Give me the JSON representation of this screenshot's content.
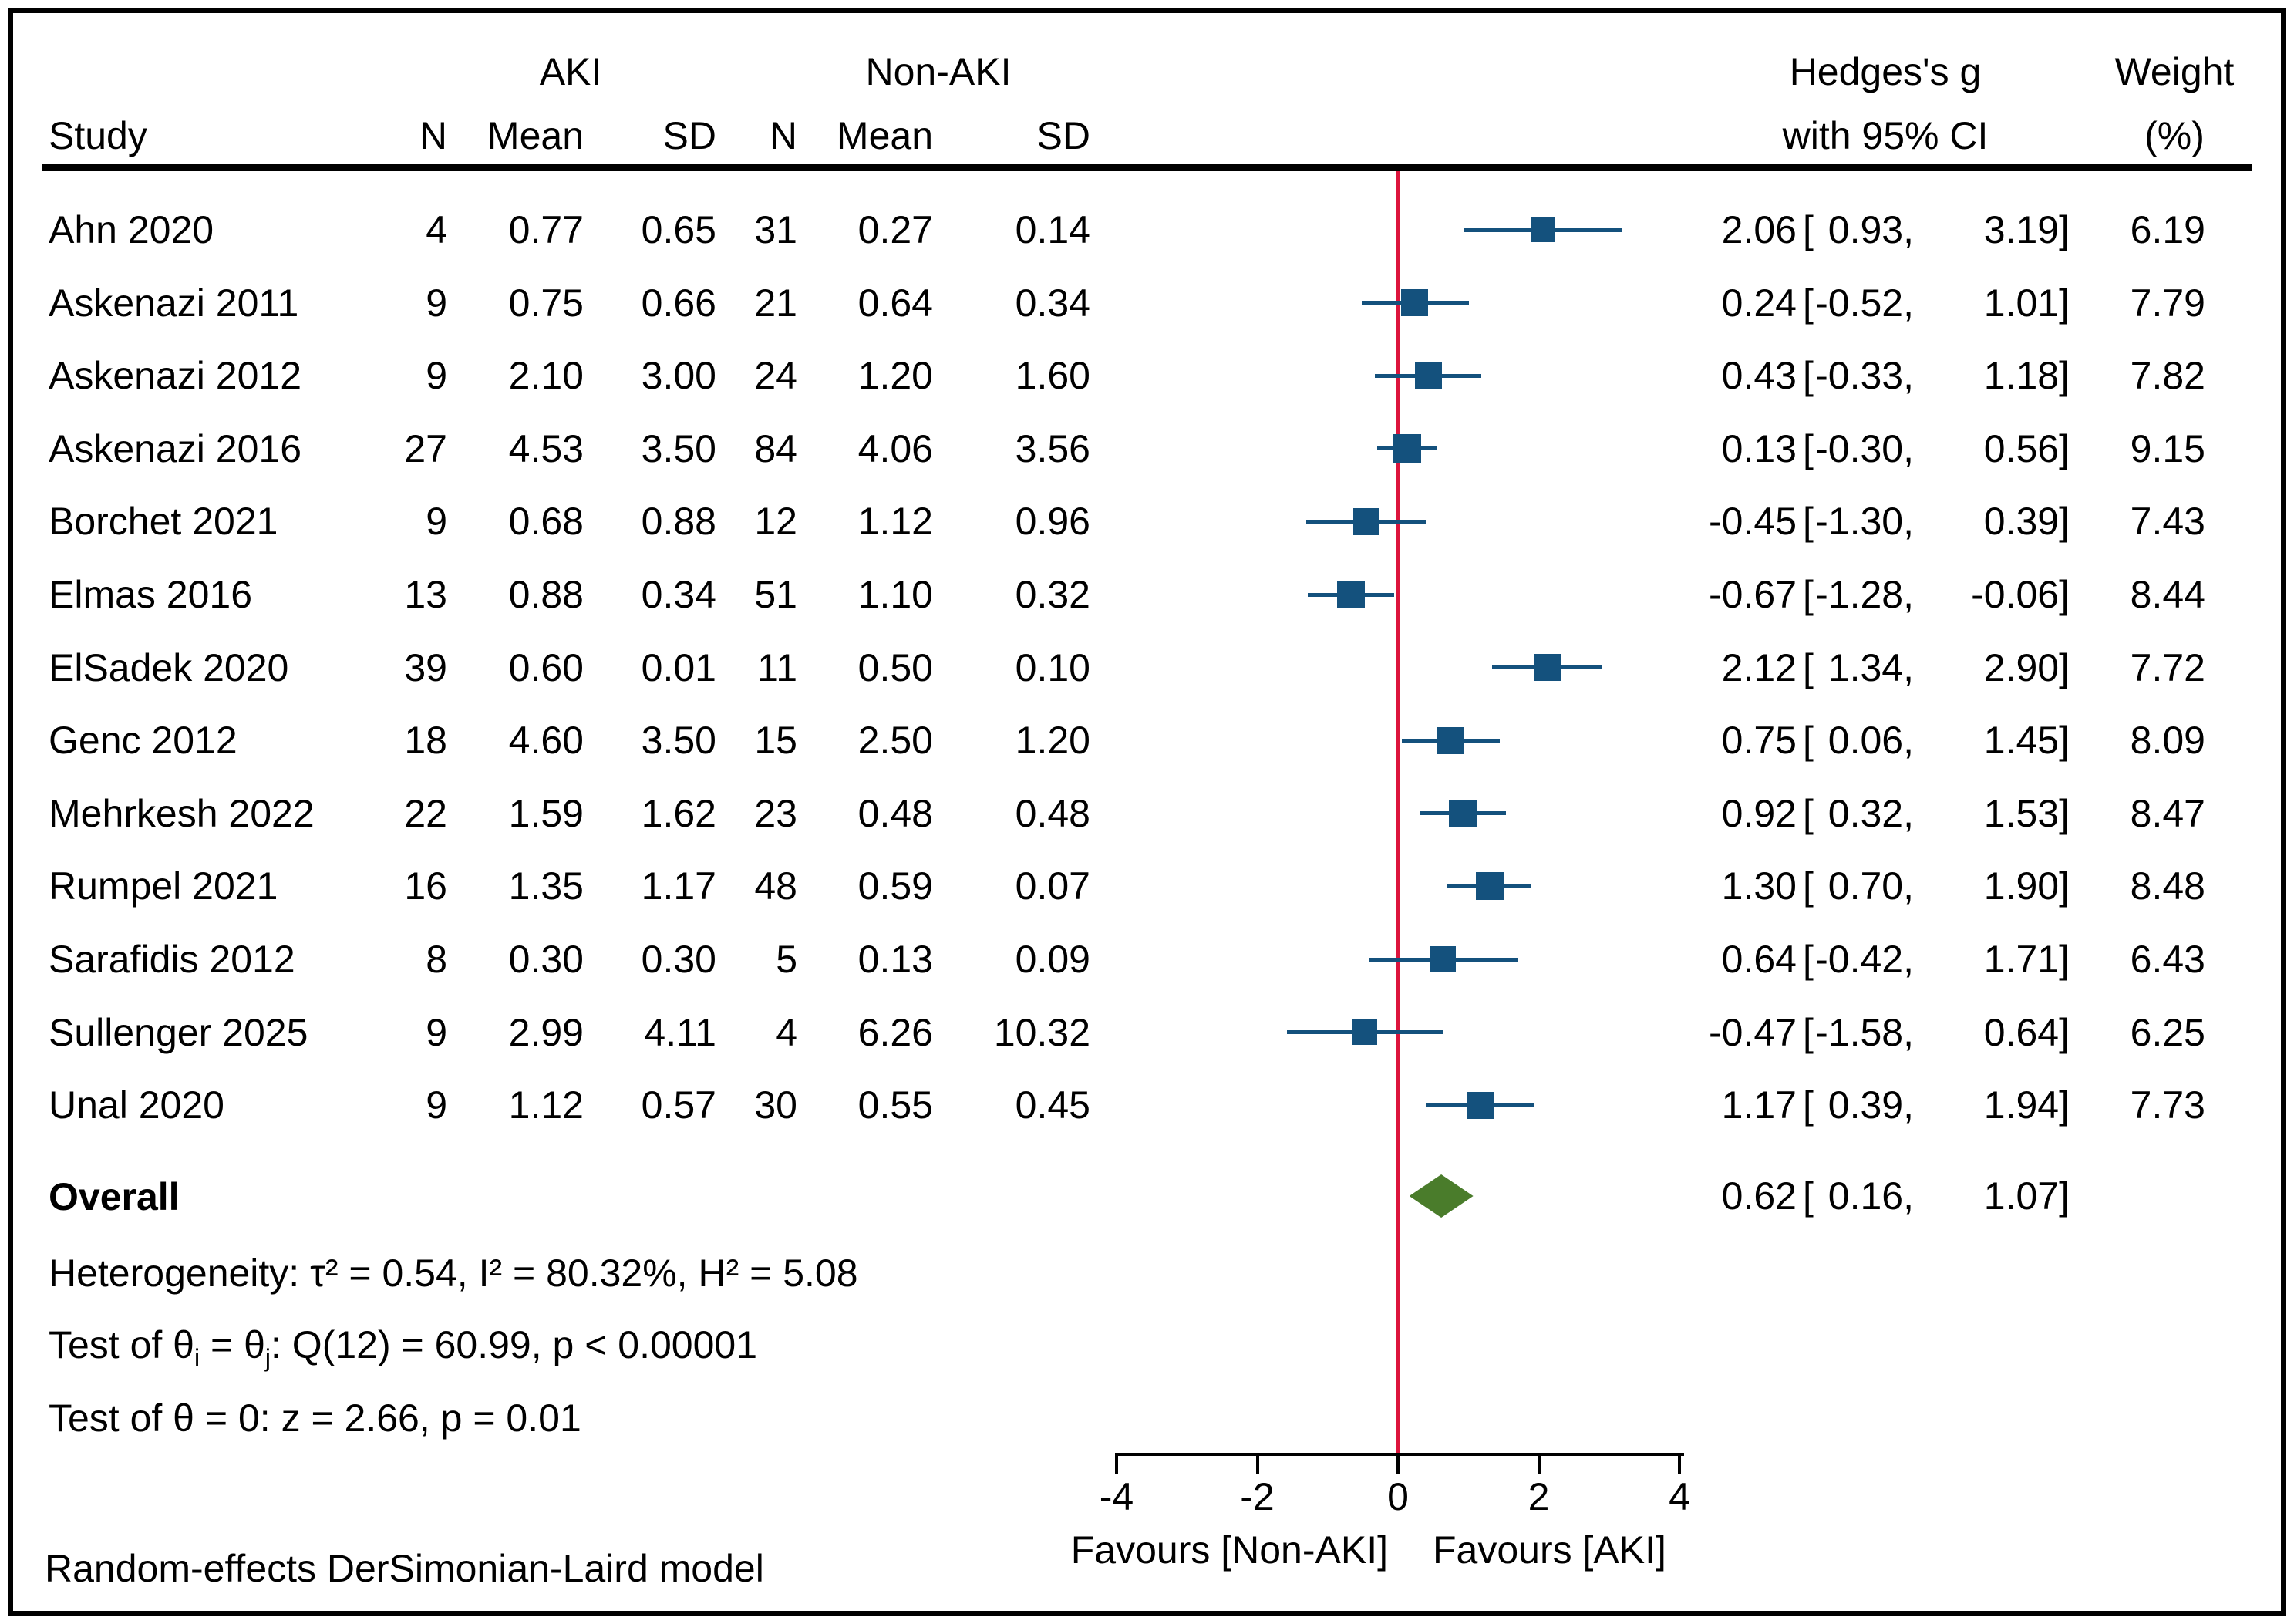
{
  "figure": {
    "headers": {
      "study": "Study",
      "aki_group": "AKI",
      "non_aki_group": "Non-AKI",
      "n1": "N",
      "mean1": "Mean",
      "sd1": "SD",
      "n2": "N",
      "mean2": "Mean",
      "sd2": "SD",
      "effect_line1": "Hedges's g",
      "effect_line2": "with 95% CI",
      "weight_line1": "Weight",
      "weight_line2": "(%)"
    },
    "stats": {
      "heterogeneity": "Heterogeneity: τ² = 0.54, I² = 80.32%, H² = 5.08",
      "homogeneity_prefix": "Test of θ",
      "homogeneity_sub_i": "i",
      "homogeneity_mid": " = θ",
      "homogeneity_sub_j": "j",
      "homogeneity_suffix": ": Q(12) = 60.99, p < 0.00001",
      "significance": "Test of θ = 0: z = 2.66, p = 0.01"
    }
  },
  "chart_data": {
    "type": "forest",
    "effect_measure": "Hedges's g",
    "ci_level": "95% CI",
    "x_axis": {
      "xlim": [
        -4,
        4
      ],
      "ticks": [
        -4,
        -2,
        0,
        2,
        4
      ],
      "ref_line_x": 0,
      "favours_left": "Favours [Non-AKI]",
      "favours_right": "Favours [AKI]"
    },
    "studies": [
      {
        "study": "Ahn 2020",
        "aki": {
          "n": "4",
          "mean": "0.77",
          "sd": "0.65"
        },
        "non_aki": {
          "n": "31",
          "mean": "0.27",
          "sd": "0.14"
        },
        "effect": {
          "est": 2.06,
          "lo": 0.93,
          "hi": 3.19
        },
        "weight": "6.19"
      },
      {
        "study": "Askenazi 2011",
        "aki": {
          "n": "9",
          "mean": "0.75",
          "sd": "0.66"
        },
        "non_aki": {
          "n": "21",
          "mean": "0.64",
          "sd": "0.34"
        },
        "effect": {
          "est": 0.24,
          "lo": -0.52,
          "hi": 1.01
        },
        "weight": "7.79"
      },
      {
        "study": "Askenazi 2012",
        "aki": {
          "n": "9",
          "mean": "2.10",
          "sd": "3.00"
        },
        "non_aki": {
          "n": "24",
          "mean": "1.20",
          "sd": "1.60"
        },
        "effect": {
          "est": 0.43,
          "lo": -0.33,
          "hi": 1.18
        },
        "weight": "7.82"
      },
      {
        "study": "Askenazi 2016",
        "aki": {
          "n": "27",
          "mean": "4.53",
          "sd": "3.50"
        },
        "non_aki": {
          "n": "84",
          "mean": "4.06",
          "sd": "3.56"
        },
        "effect": {
          "est": 0.13,
          "lo": -0.3,
          "hi": 0.56
        },
        "weight": "9.15"
      },
      {
        "study": "Borchet 2021",
        "aki": {
          "n": "9",
          "mean": "0.68",
          "sd": "0.88"
        },
        "non_aki": {
          "n": "12",
          "mean": "1.12",
          "sd": "0.96"
        },
        "effect": {
          "est": -0.45,
          "lo": -1.3,
          "hi": 0.39
        },
        "weight": "7.43"
      },
      {
        "study": "Elmas 2016",
        "aki": {
          "n": "13",
          "mean": "0.88",
          "sd": "0.34"
        },
        "non_aki": {
          "n": "51",
          "mean": "1.10",
          "sd": "0.32"
        },
        "effect": {
          "est": -0.67,
          "lo": -1.28,
          "hi": -0.06
        },
        "weight": "8.44"
      },
      {
        "study": "ElSadek 2020",
        "aki": {
          "n": "39",
          "mean": "0.60",
          "sd": "0.01"
        },
        "non_aki": {
          "n": "11",
          "mean": "0.50",
          "sd": "0.10"
        },
        "effect": {
          "est": 2.12,
          "lo": 1.34,
          "hi": 2.9
        },
        "weight": "7.72"
      },
      {
        "study": "Genc 2012",
        "aki": {
          "n": "18",
          "mean": "4.60",
          "sd": "3.50"
        },
        "non_aki": {
          "n": "15",
          "mean": "2.50",
          "sd": "1.20"
        },
        "effect": {
          "est": 0.75,
          "lo": 0.06,
          "hi": 1.45
        },
        "weight": "8.09"
      },
      {
        "study": "Mehrkesh 2022",
        "aki": {
          "n": "22",
          "mean": "1.59",
          "sd": "1.62"
        },
        "non_aki": {
          "n": "23",
          "mean": "0.48",
          "sd": "0.48"
        },
        "effect": {
          "est": 0.92,
          "lo": 0.32,
          "hi": 1.53
        },
        "weight": "8.47"
      },
      {
        "study": "Rumpel 2021",
        "aki": {
          "n": "16",
          "mean": "1.35",
          "sd": "1.17"
        },
        "non_aki": {
          "n": "48",
          "mean": "0.59",
          "sd": "0.07"
        },
        "effect": {
          "est": 1.3,
          "lo": 0.7,
          "hi": 1.9
        },
        "weight": "8.48"
      },
      {
        "study": "Sarafidis 2012",
        "aki": {
          "n": "8",
          "mean": "0.30",
          "sd": "0.30"
        },
        "non_aki": {
          "n": "5",
          "mean": "0.13",
          "sd": "0.09"
        },
        "effect": {
          "est": 0.64,
          "lo": -0.42,
          "hi": 1.71
        },
        "weight": "6.43"
      },
      {
        "study": "Sullenger 2025",
        "aki": {
          "n": "9",
          "mean": "2.99",
          "sd": "4.11"
        },
        "non_aki": {
          "n": "4",
          "mean": "6.26",
          "sd": "10.32"
        },
        "effect": {
          "est": -0.47,
          "lo": -1.58,
          "hi": 0.64
        },
        "weight": "6.25"
      },
      {
        "study": "Unal 2020",
        "aki": {
          "n": "9",
          "mean": "1.12",
          "sd": "0.57"
        },
        "non_aki": {
          "n": "30",
          "mean": "0.55",
          "sd": "0.45"
        },
        "effect": {
          "est": 1.17,
          "lo": 0.39,
          "hi": 1.94
        },
        "weight": "7.73"
      }
    ],
    "overall": {
      "label": "Overall",
      "effect": {
        "est": 0.62,
        "lo": 0.16,
        "hi": 1.07
      }
    },
    "heterogeneity": {
      "tau2": 0.54,
      "I2_pct": 80.32,
      "H2": 5.08,
      "Q_df": 12,
      "Q": 60.99,
      "Q_p": "p < 0.00001",
      "z": 2.66,
      "z_p": "p = 0.01"
    },
    "model": "Random-effects DerSimonian-Laird model",
    "colors": {
      "marker": "#14517D",
      "ci_line": "#14517D",
      "diamond": "#4A7C2B",
      "ref_line": "#DC143C",
      "text": "#000000"
    }
  }
}
